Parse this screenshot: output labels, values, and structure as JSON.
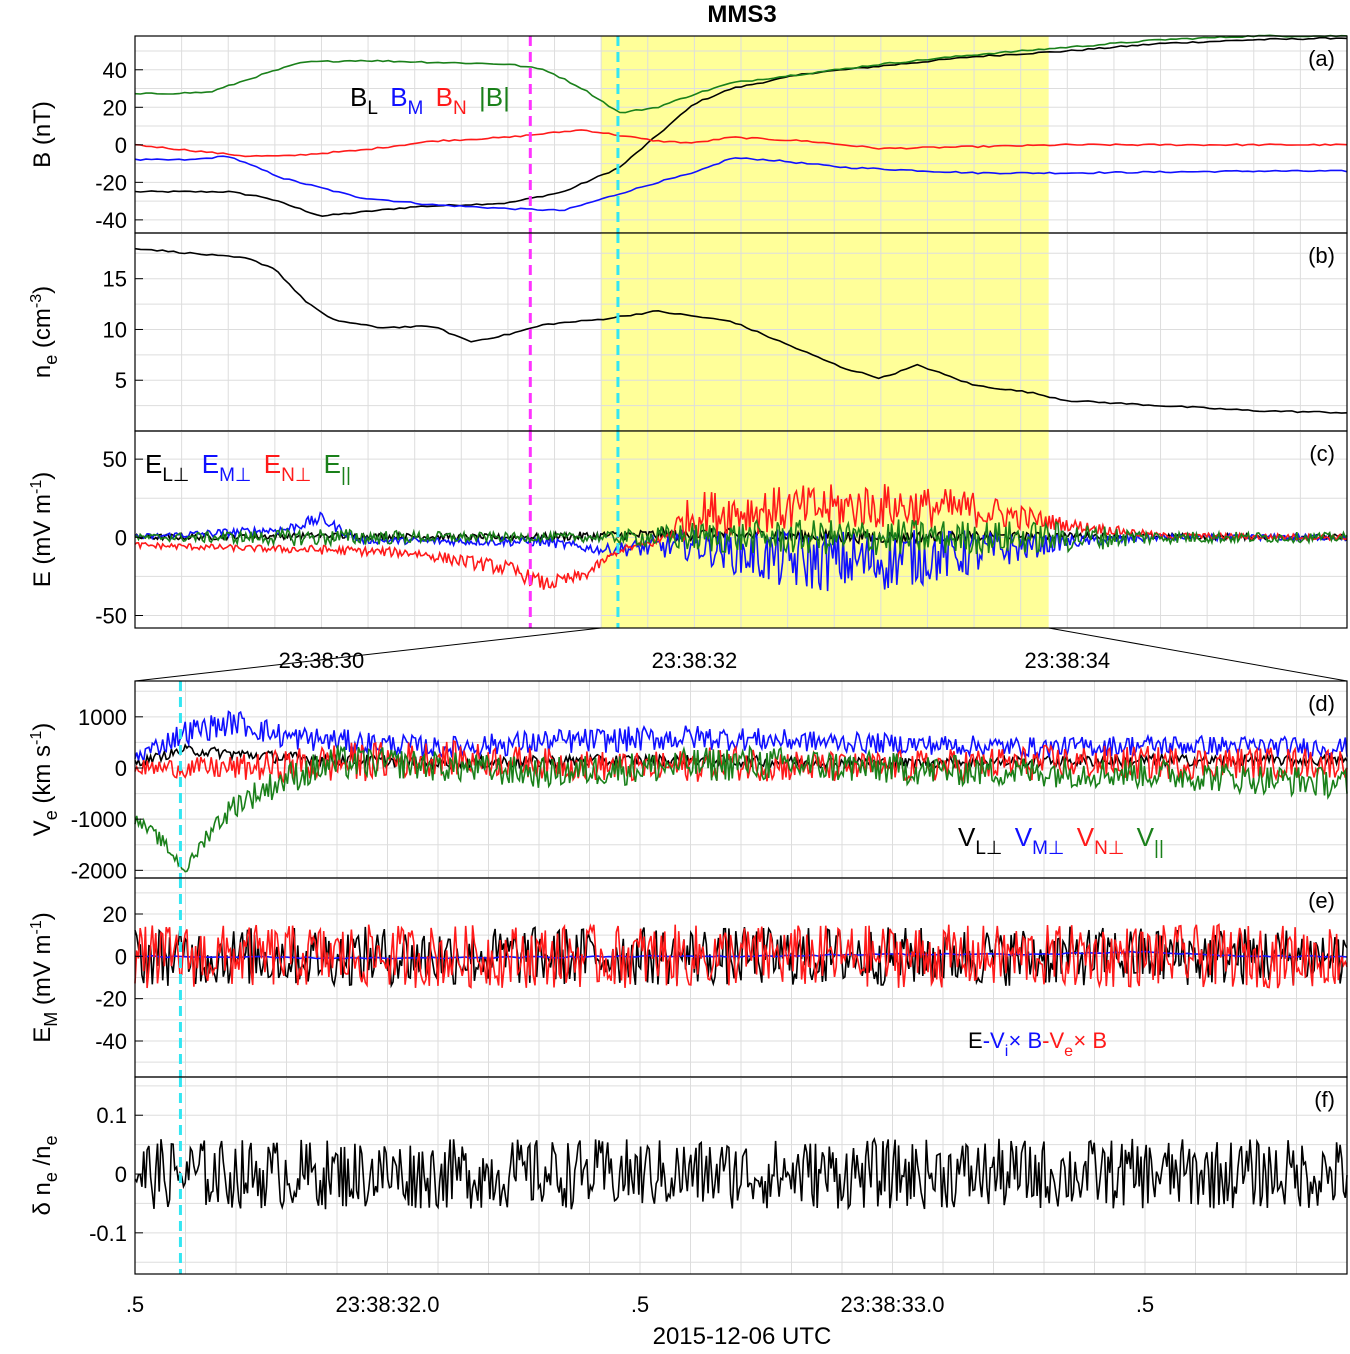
{
  "figure": {
    "title": "MMS3",
    "xlabel": "2015-12-06 UTC"
  },
  "colors": {
    "L": "#000000",
    "M": "#1010ff",
    "N": "#ff1a1a",
    "par": "#1a801a",
    "mag": "#1a801a",
    "magenta": "#ff33ff",
    "cyan": "#33e6f2",
    "highlight": "#ffff99",
    "grid": "#dddddd"
  },
  "chart_data": [
    {
      "id": "a",
      "type": "line",
      "panel_label": "(a)",
      "ylabel": "B (nT)",
      "ylim": [
        -47,
        58
      ],
      "yticks": [
        -40,
        -20,
        0,
        20,
        40
      ],
      "xlim": [
        "23:38:29.0",
        "23:38:35.5"
      ],
      "xticks": [
        "23:38:30",
        "23:38:32",
        "23:38:34"
      ],
      "highlight_interval": [
        "23:38:31.5",
        "23:38:33.9"
      ],
      "vlines": [
        {
          "t": "23:38:31.12",
          "color": "magenta"
        },
        {
          "t": "23:38:31.59",
          "color": "cyan"
        }
      ],
      "legend": [
        {
          "label": "B",
          "sub": "L",
          "color": "L"
        },
        {
          "label": "B",
          "sub": "M",
          "color": "M"
        },
        {
          "label": "B",
          "sub": "N",
          "color": "N"
        },
        {
          "label": "|B|",
          "sub": "",
          "color": "mag"
        }
      ],
      "series": [
        {
          "name": "B_L",
          "color": "L",
          "x": [
            0,
            0.5,
            0.7,
            1.0,
            1.5,
            2.0,
            2.3,
            2.6,
            2.8,
            3.0,
            3.2,
            3.4,
            3.6,
            4.0,
            4.5,
            5.0,
            5.5,
            6.0,
            6.5
          ],
          "y": [
            -25,
            -25,
            -28,
            -38,
            -33,
            -31,
            -25,
            -12,
            5,
            22,
            30,
            34,
            38,
            42,
            47,
            50,
            54,
            56,
            57
          ]
        },
        {
          "name": "B_M",
          "color": "M",
          "x": [
            0,
            0.3,
            0.5,
            0.8,
            1.2,
            1.6,
            2.0,
            2.3,
            2.5,
            2.8,
            3.0,
            3.2,
            3.4,
            3.8,
            4.5,
            5.0,
            6.0,
            6.5
          ],
          "y": [
            -8,
            -8,
            -6,
            -18,
            -28,
            -32,
            -34,
            -35,
            -29,
            -20,
            -15,
            -7,
            -8,
            -12,
            -15,
            -15,
            -14,
            -14
          ]
        },
        {
          "name": "B_N",
          "color": "N",
          "x": [
            0,
            0.3,
            0.6,
            0.8,
            1.2,
            1.6,
            2.0,
            2.2,
            2.4,
            2.6,
            2.8,
            3.0,
            3.2,
            3.6,
            4.0,
            4.5,
            5.0,
            6.0,
            6.5
          ],
          "y": [
            0,
            -3,
            -6,
            -6,
            -3,
            2,
            4,
            6,
            8,
            5,
            2,
            1,
            4,
            2,
            -2,
            -1,
            0,
            0,
            0
          ]
        },
        {
          "name": "|B|",
          "color": "mag",
          "x": [
            0,
            0.4,
            0.7,
            0.9,
            1.2,
            1.6,
            2.0,
            2.2,
            2.4,
            2.6,
            2.8,
            3.0,
            3.2,
            3.6,
            4.0,
            4.5,
            5.0,
            5.5,
            6.0,
            6.5
          ],
          "y": [
            27,
            28,
            38,
            44,
            45,
            44,
            43,
            40,
            30,
            17,
            20,
            27,
            33,
            38,
            43,
            48,
            52,
            56,
            58,
            58
          ]
        }
      ]
    },
    {
      "id": "b",
      "type": "line",
      "panel_label": "(b)",
      "ylabel": "n",
      "ylabel_sub": "e",
      "ylabel_unit": " (cm",
      "ylabel_sup": "-3",
      "ylabel_end": ")",
      "ylim": [
        0,
        19.5
      ],
      "yticks": [
        5,
        10,
        15
      ],
      "series": [
        {
          "name": "n_e",
          "color": "L",
          "x": [
            0,
            0.3,
            0.6,
            0.75,
            0.9,
            1.05,
            1.3,
            1.6,
            1.8,
            2.0,
            2.2,
            2.5,
            2.8,
            3.0,
            3.2,
            3.5,
            3.8,
            4.0,
            4.2,
            4.5,
            4.8,
            5.0,
            5.3,
            5.6,
            6.0,
            6.5
          ],
          "y": [
            18,
            17.5,
            17,
            16,
            13,
            11,
            10.2,
            10.3,
            8.8,
            9.5,
            10.5,
            11,
            11.8,
            11.3,
            10.8,
            8.5,
            6.2,
            5.2,
            6.5,
            4.5,
            3.8,
            3.0,
            2.7,
            2.4,
            2.0,
            1.8
          ]
        }
      ]
    },
    {
      "id": "c",
      "type": "line",
      "panel_label": "(c)",
      "ylabel": "E (mV m",
      "ylabel_sup": "-1",
      "ylabel_end": ")",
      "ylim": [
        -58,
        68
      ],
      "yticks": [
        -50,
        0,
        50
      ],
      "legend": [
        {
          "label": "E",
          "sub": "L⊥",
          "color": "L"
        },
        {
          "label": "E",
          "sub": "M⊥",
          "color": "M"
        },
        {
          "label": "E",
          "sub": "N⊥",
          "color": "N"
        },
        {
          "label": "E",
          "sub": "||",
          "color": "par"
        }
      ],
      "series": [
        {
          "name": "E_L_perp",
          "color": "L",
          "x": [
            0,
            1.0,
            2.0,
            3.0,
            4.0,
            5.0,
            6.5
          ],
          "y": [
            0,
            1,
            0,
            2,
            0,
            1,
            0
          ],
          "noise": [
            2,
            2,
            2,
            4,
            4,
            2,
            2
          ]
        },
        {
          "name": "E_M_perp",
          "color": "M",
          "x": [
            0,
            0.8,
            1.0,
            1.2,
            2.2,
            2.5,
            3.0,
            3.5,
            4.0,
            4.5,
            5.0,
            5.5,
            6.5
          ],
          "y": [
            0,
            5,
            12,
            -2,
            -3,
            -8,
            -5,
            -15,
            -15,
            -10,
            -3,
            0,
            0
          ],
          "noise": [
            2,
            3,
            4,
            2,
            3,
            3,
            10,
            20,
            20,
            15,
            4,
            2,
            2
          ]
        },
        {
          "name": "E_N_perp",
          "color": "N",
          "x": [
            0,
            0.6,
            1.0,
            1.5,
            2.0,
            2.2,
            2.4,
            2.6,
            2.8,
            3.0,
            3.5,
            4.0,
            4.5,
            5.0,
            5.5,
            6.5
          ],
          "y": [
            -5,
            -7,
            -8,
            -10,
            -20,
            -30,
            -25,
            -8,
            -3,
            15,
            18,
            20,
            18,
            8,
            1,
            0
          ],
          "noise": [
            2,
            2,
            3,
            3,
            5,
            5,
            4,
            2,
            3,
            15,
            15,
            15,
            12,
            4,
            2,
            2
          ]
        },
        {
          "name": "E_par",
          "color": "par",
          "x": [
            0,
            1.0,
            1.5,
            2.0,
            2.5,
            3.0,
            4.0,
            5.0,
            5.5,
            6.5
          ],
          "y": [
            0,
            0,
            0,
            0,
            0,
            0,
            0,
            0,
            0,
            0
          ],
          "noise": [
            2,
            6,
            4,
            3,
            3,
            10,
            12,
            10,
            4,
            3
          ]
        }
      ]
    },
    {
      "id": "d",
      "type": "line",
      "panel_label": "(d)",
      "ylabel": "V",
      "ylabel_sub": "e",
      "ylabel_unit": " (km s",
      "ylabel_sup": "-1",
      "ylabel_end": ")",
      "ylim": [
        -2150,
        1700
      ],
      "yticks": [
        -2000,
        -1000,
        0,
        1000
      ],
      "xlim": [
        "23:38:31.5",
        "23:38:33.9"
      ],
      "xticks": [
        ".5",
        "23:38:32.0",
        ".5",
        "23:38:33.0",
        ".5"
      ],
      "vlines": [
        {
          "t": "23:38:31.59",
          "color": "cyan"
        }
      ],
      "legend": [
        {
          "label": "V",
          "sub": "L⊥",
          "color": "L"
        },
        {
          "label": "V",
          "sub": "M⊥",
          "color": "M"
        },
        {
          "label": "V",
          "sub": "N⊥",
          "color": "N"
        },
        {
          "label": "V",
          "sub": "||",
          "color": "par"
        }
      ],
      "series": [
        {
          "name": "V_L_perp",
          "color": "L",
          "x": [
            0,
            0.1,
            0.3,
            0.6,
            1.0,
            1.5,
            2.0,
            2.4
          ],
          "y": [
            100,
            350,
            200,
            100,
            150,
            100,
            150,
            150
          ],
          "noise": [
            80,
            100,
            120,
            120,
            120,
            100,
            120,
            100
          ]
        },
        {
          "name": "V_M_perp",
          "color": "M",
          "x": [
            0,
            0.1,
            0.2,
            0.3,
            0.6,
            0.8,
            1.1,
            1.4,
            1.8,
            2.0,
            2.4
          ],
          "y": [
            200,
            700,
            900,
            600,
            400,
            500,
            600,
            500,
            400,
            450,
            400
          ],
          "noise": [
            150,
            250,
            250,
            250,
            200,
            250,
            250,
            200,
            200,
            200,
            200
          ]
        },
        {
          "name": "V_N_perp",
          "color": "N",
          "x": [
            0,
            0.2,
            0.4,
            0.6,
            0.8,
            1.0,
            1.2,
            1.4,
            1.8,
            2.4
          ],
          "y": [
            0,
            0,
            100,
            200,
            100,
            0,
            100,
            0,
            100,
            100
          ],
          "noise": [
            150,
            250,
            400,
            350,
            300,
            300,
            350,
            300,
            350,
            300
          ]
        },
        {
          "name": "V_par",
          "color": "par",
          "x": [
            0,
            0.05,
            0.1,
            0.15,
            0.2,
            0.3,
            0.4,
            0.5,
            0.8,
            1.2,
            1.6,
            2.0,
            2.4
          ],
          "y": [
            -1000,
            -1400,
            -2000,
            -1200,
            -700,
            -200,
            100,
            100,
            -100,
            100,
            -50,
            -100,
            -300
          ],
          "noise": [
            100,
            150,
            100,
            200,
            250,
            300,
            350,
            300,
            300,
            350,
            300,
            300,
            300
          ]
        }
      ]
    },
    {
      "id": "e",
      "type": "line",
      "panel_label": "(e)",
      "ylabel": "E",
      "ylabel_sub": "M",
      "ylabel_unit": " (mV m",
      "ylabel_sup": "-1",
      "ylabel_end": ")",
      "ylim": [
        -57,
        37
      ],
      "yticks": [
        -40,
        -20,
        0,
        20
      ],
      "legend_prefix": "E",
      "legend": [
        {
          "label": "-V",
          "sub": "i",
          "suffix": " × B",
          "color": "M"
        },
        {
          "label": "-V",
          "sub": "e",
          "suffix": " × B",
          "color": "N"
        }
      ],
      "series": [
        {
          "name": "E",
          "color": "L",
          "x": [
            0,
            2.4
          ],
          "y": [
            0,
            0
          ],
          "noise": [
            14,
            14
          ]
        },
        {
          "name": "-V_i x B",
          "color": "M",
          "x": [
            0,
            0.5,
            1.0,
            1.2,
            1.5,
            1.8,
            2.0,
            2.2,
            2.4
          ],
          "y": [
            0,
            -1,
            0,
            0,
            1,
            1,
            2,
            0,
            0
          ]
        },
        {
          "name": "-V_e x B",
          "color": "N",
          "x": [
            0,
            2.4
          ],
          "y": [
            0,
            0
          ],
          "noise": [
            15,
            15
          ]
        }
      ]
    },
    {
      "id": "f",
      "type": "line",
      "panel_label": "(f)",
      "ylabel": "δ n",
      "ylabel_sub": "e",
      "ylabel_unit": " /n",
      "ylabel_sub2": "e",
      "ylim": [
        -0.17,
        0.165
      ],
      "yticks": [
        -0.1,
        0,
        0.1
      ],
      "series": [
        {
          "name": "dn/n",
          "color": "L",
          "x": [
            0,
            2.4
          ],
          "y": [
            0,
            0
          ],
          "noise": [
            0.06,
            0.06
          ]
        }
      ]
    }
  ]
}
